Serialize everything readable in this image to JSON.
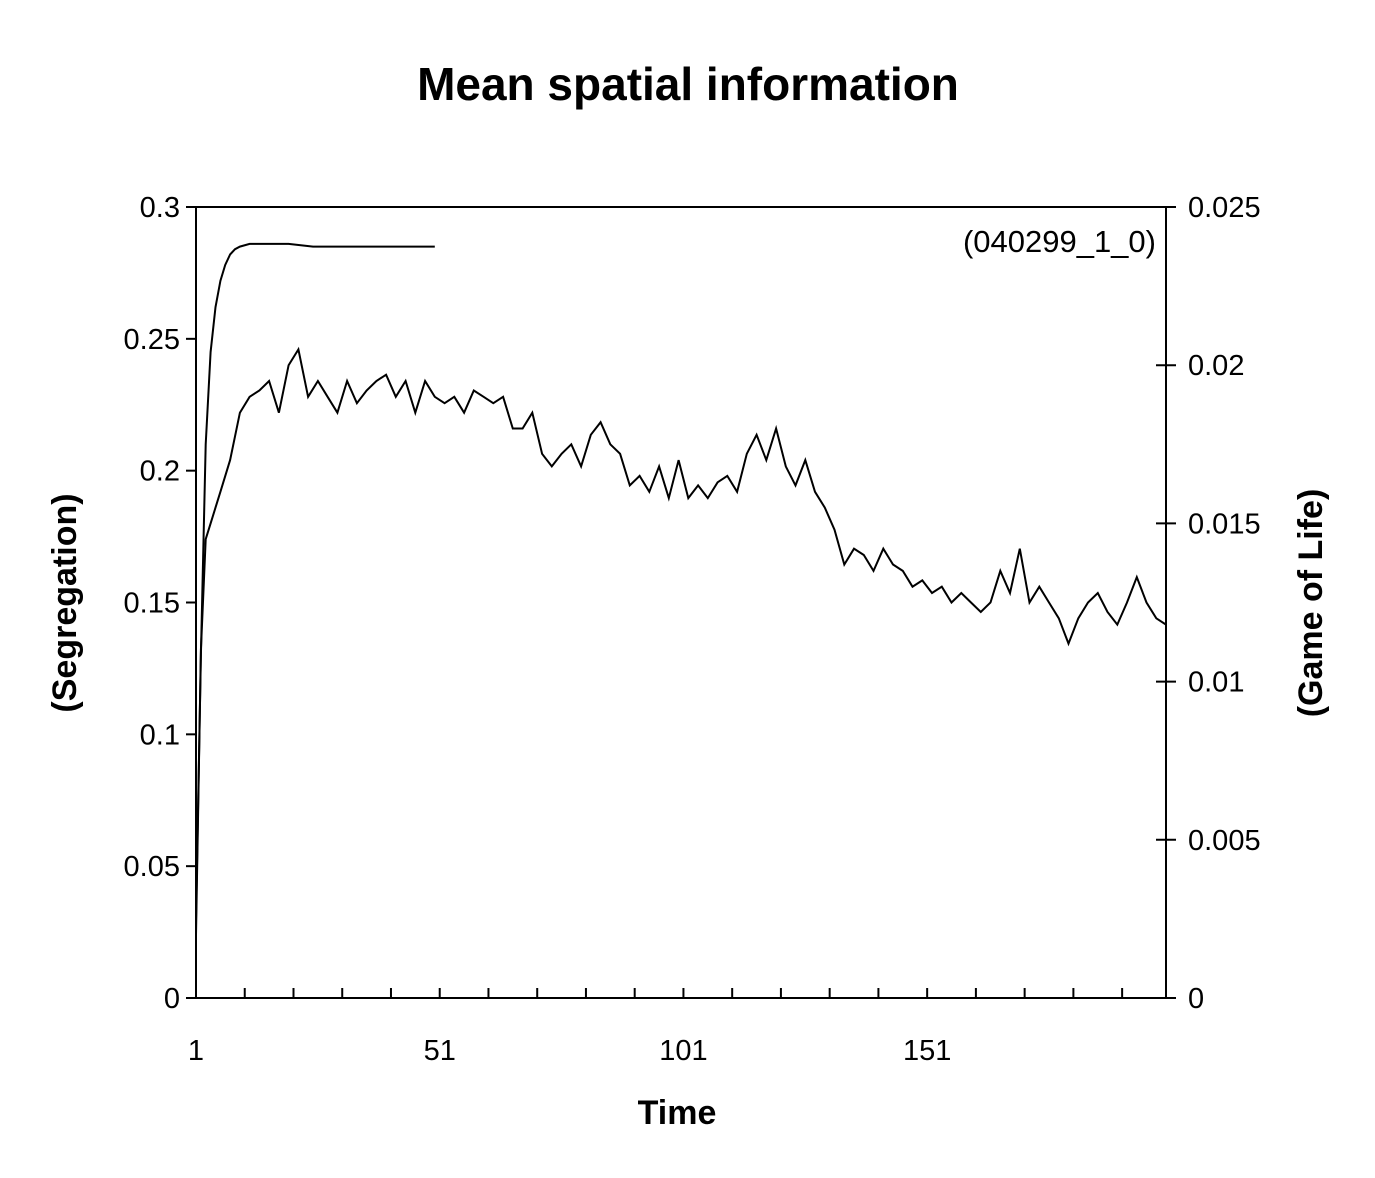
{
  "chart_data": {
    "type": "line",
    "title": "Mean spatial information",
    "xlabel": "Time",
    "ylabel_left": "(Segregation)",
    "ylabel_right": "(Game of Life)",
    "annotation": "(040299_1_0)",
    "xlim": [
      1,
      200
    ],
    "ylim_left": [
      0,
      0.3
    ],
    "ylim_right": [
      0,
      0.025
    ],
    "x_ticks": [
      1,
      51,
      101,
      151
    ],
    "y_ticks_left": [
      "0",
      "0.05",
      "0.1",
      "0.15",
      "0.2",
      "0.25",
      "0.3"
    ],
    "y_ticks_right": [
      "0",
      "0.005",
      "0.01",
      "0.015",
      "0.02",
      "0.025"
    ],
    "grid": false,
    "series": [
      {
        "axis": "left",
        "x": [
          1,
          2,
          3,
          4,
          5,
          6,
          7,
          8,
          9,
          10,
          12,
          14,
          16,
          18,
          20,
          25,
          30,
          35,
          40,
          45,
          50
        ],
        "values": [
          0.03,
          0.13,
          0.21,
          0.245,
          0.262,
          0.272,
          0.278,
          0.282,
          0.284,
          0.285,
          0.286,
          0.286,
          0.286,
          0.286,
          0.286,
          0.285,
          0.285,
          0.285,
          0.285,
          0.285,
          0.285
        ]
      },
      {
        "axis": "right",
        "x": [
          1,
          2,
          3,
          4,
          5,
          6,
          8,
          10,
          12,
          14,
          16,
          18,
          20,
          22,
          24,
          26,
          28,
          30,
          32,
          34,
          36,
          38,
          40,
          42,
          44,
          46,
          48,
          50,
          52,
          54,
          56,
          58,
          60,
          62,
          64,
          66,
          68,
          70,
          72,
          74,
          76,
          78,
          80,
          82,
          84,
          86,
          88,
          90,
          92,
          94,
          96,
          98,
          100,
          102,
          104,
          106,
          108,
          110,
          112,
          114,
          116,
          118,
          120,
          122,
          124,
          126,
          128,
          130,
          132,
          134,
          136,
          138,
          140,
          142,
          144,
          146,
          148,
          150,
          152,
          154,
          156,
          158,
          160,
          162,
          164,
          166,
          168,
          170,
          172,
          174,
          176,
          178,
          180,
          182,
          184,
          186,
          188,
          190,
          192,
          194,
          196,
          198,
          200
        ],
        "values": [
          0.002,
          0.011,
          0.0145,
          0.015,
          0.0155,
          0.016,
          0.017,
          0.0185,
          0.019,
          0.0192,
          0.0195,
          0.0185,
          0.02,
          0.0205,
          0.019,
          0.0195,
          0.019,
          0.0185,
          0.0195,
          0.0188,
          0.0192,
          0.0195,
          0.0197,
          0.019,
          0.0195,
          0.0185,
          0.0195,
          0.019,
          0.0188,
          0.019,
          0.0185,
          0.0192,
          0.019,
          0.0188,
          0.019,
          0.018,
          0.018,
          0.0185,
          0.0172,
          0.0168,
          0.0172,
          0.0175,
          0.0168,
          0.0178,
          0.0182,
          0.0175,
          0.0172,
          0.0162,
          0.0165,
          0.016,
          0.0168,
          0.0158,
          0.017,
          0.0158,
          0.0162,
          0.0158,
          0.0163,
          0.0165,
          0.016,
          0.0172,
          0.0178,
          0.017,
          0.018,
          0.0168,
          0.0162,
          0.017,
          0.016,
          0.0155,
          0.0148,
          0.0137,
          0.0142,
          0.014,
          0.0135,
          0.0142,
          0.0137,
          0.0135,
          0.013,
          0.0132,
          0.0128,
          0.013,
          0.0125,
          0.0128,
          0.0125,
          0.0122,
          0.0125,
          0.0135,
          0.0128,
          0.0142,
          0.0125,
          0.013,
          0.0125,
          0.012,
          0.0112,
          0.012,
          0.0125,
          0.0128,
          0.0122,
          0.0118,
          0.0125,
          0.0133,
          0.0125,
          0.012,
          0.0118
        ]
      }
    ]
  }
}
